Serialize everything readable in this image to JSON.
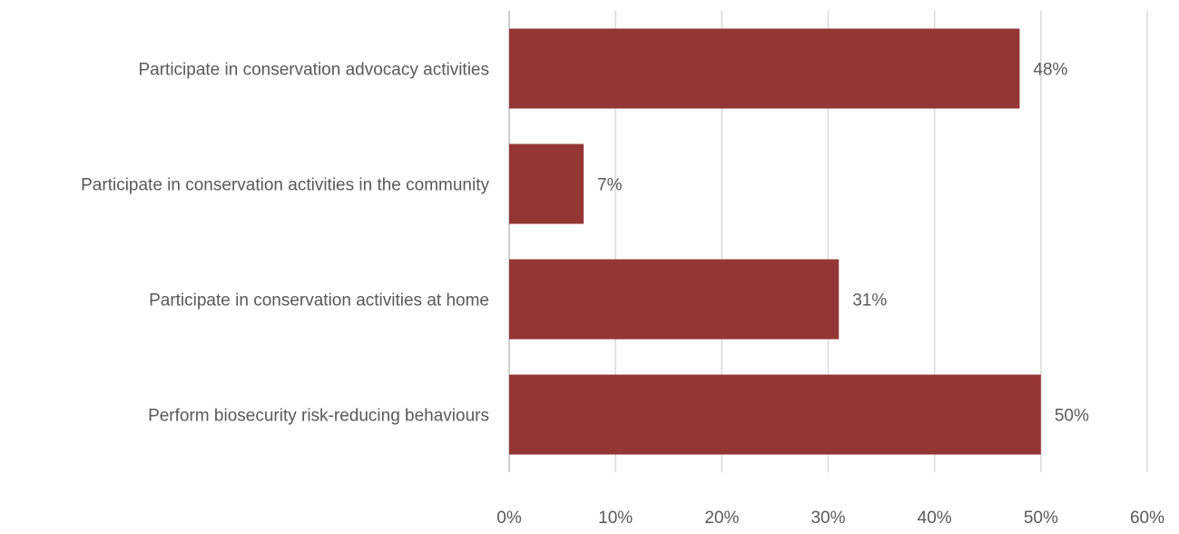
{
  "chart_data": {
    "type": "bar",
    "orientation": "horizontal",
    "categories": [
      "Participate in conservation advocacy activities",
      "Participate in conservation activities in the community",
      "Participate in conservation activities at home",
      "Perform biosecurity risk-reducing behaviours"
    ],
    "values": [
      48,
      7,
      31,
      50
    ],
    "data_labels": [
      "48%",
      "7%",
      "31%",
      "50%"
    ],
    "xlim": [
      0,
      60
    ],
    "x_ticks": [
      0,
      10,
      20,
      30,
      40,
      50,
      60
    ],
    "x_tick_labels": [
      "0%",
      "10%",
      "20%",
      "30%",
      "40%",
      "50%",
      "60%"
    ],
    "title": "",
    "xlabel": "",
    "ylabel": "",
    "grid": "vertical",
    "legend": "none",
    "bar_color": "#943634",
    "grid_color": "#d9d9d9",
    "text_color": "#595959"
  }
}
